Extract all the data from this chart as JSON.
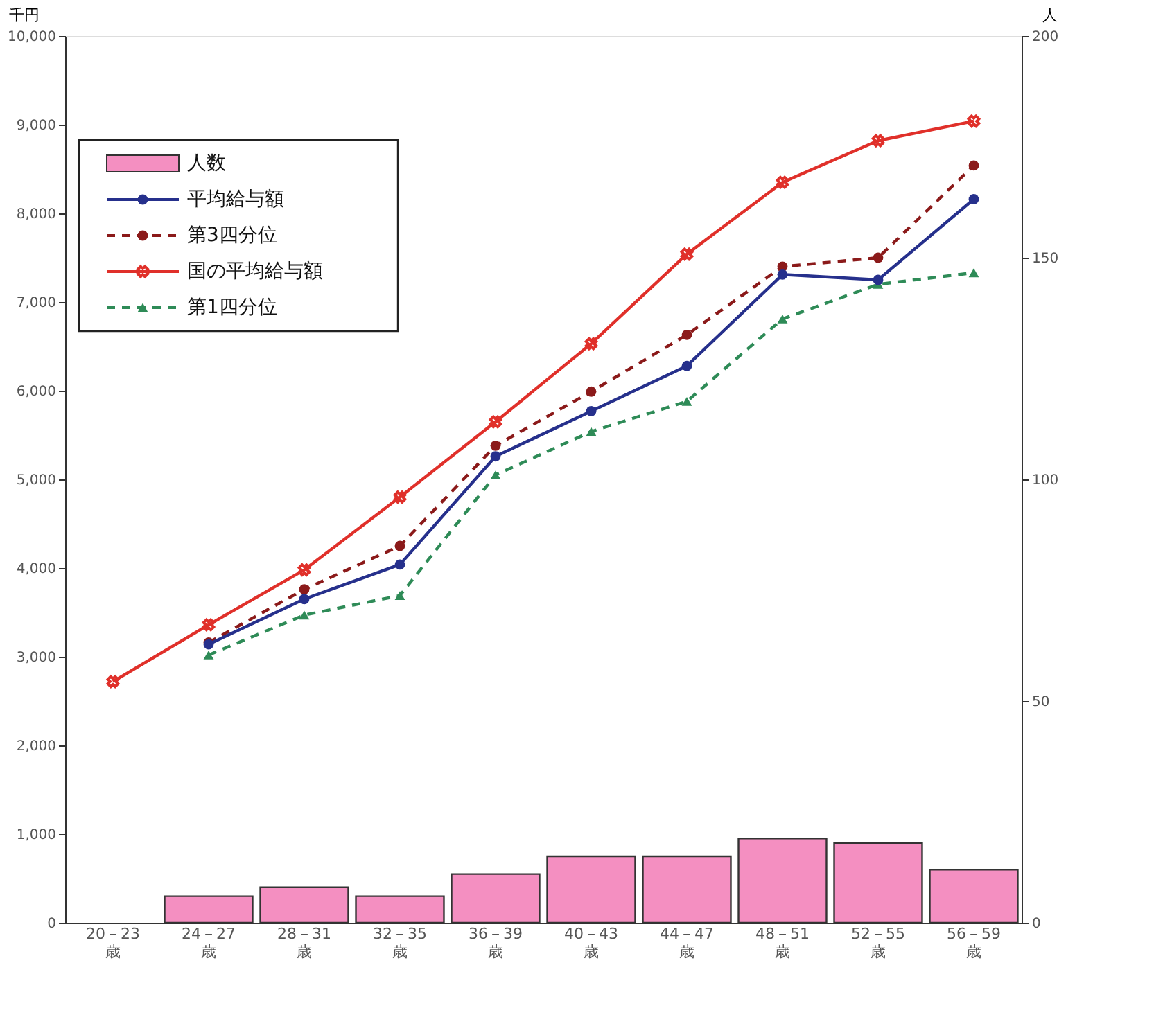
{
  "chart_data": {
    "type": "line",
    "ylabel": "千円",
    "y2label": "人",
    "categories": [
      "20－23\n歳",
      "24－27\n歳",
      "28－31\n歳",
      "32－35\n歳",
      "36－39\n歳",
      "40－43\n歳",
      "44－47\n歳",
      "48－51\n歳",
      "52－55\n歳",
      "56－59\n歳"
    ],
    "ylim": [
      0,
      10000
    ],
    "yticks": [
      0,
      {
        "value": 1000,
        "label": "1,000"
      },
      {
        "value": 2000,
        "label": "2,000"
      },
      {
        "value": 3000,
        "label": "3,000"
      },
      {
        "value": 4000,
        "label": "4,000"
      },
      {
        "value": 5000,
        "label": "5,000"
      },
      {
        "value": 6000,
        "label": "6,000"
      },
      {
        "value": 7000,
        "label": "7,000"
      },
      {
        "value": 8000,
        "label": "8,000"
      },
      {
        "value": 9000,
        "label": "9,000"
      },
      {
        "value": 10000,
        "label": "10,000"
      }
    ],
    "y2lim": [
      0,
      200
    ],
    "y2ticks": [
      0,
      50,
      100,
      150,
      200
    ],
    "grid": false,
    "legend": "top left",
    "series": [
      {
        "name": "人数",
        "type": "bar",
        "axis": "y2",
        "color": "#f48fc1",
        "values": [
          null,
          6,
          8,
          6,
          11,
          15,
          15,
          19,
          18,
          12
        ]
      },
      {
        "name": "平均給与額",
        "color": "#26308c",
        "marker": "circle",
        "line_style": "solid",
        "values": [
          null,
          3140,
          3650,
          4040,
          5260,
          5770,
          6280,
          7310,
          7250,
          8160
        ]
      },
      {
        "name": "第3四分位",
        "color": "#8b1a1a",
        "marker": "circle",
        "line_style": "dashed",
        "values": [
          null,
          3160,
          3760,
          4250,
          5380,
          5990,
          6630,
          7400,
          7500,
          8540
        ]
      },
      {
        "name": "国の平均給与額",
        "color": "#e0302a",
        "marker": "cross",
        "line_style": "solid",
        "values": [
          2720,
          3360,
          3980,
          4800,
          5650,
          6530,
          7540,
          8350,
          8820,
          9040
        ]
      },
      {
        "name": "第1四分位",
        "color": "#2e8b57",
        "marker": "triangle",
        "line_style": "dashed",
        "values": [
          null,
          3020,
          3470,
          3690,
          5050,
          5540,
          5880,
          6810,
          7200,
          7330
        ]
      }
    ]
  }
}
